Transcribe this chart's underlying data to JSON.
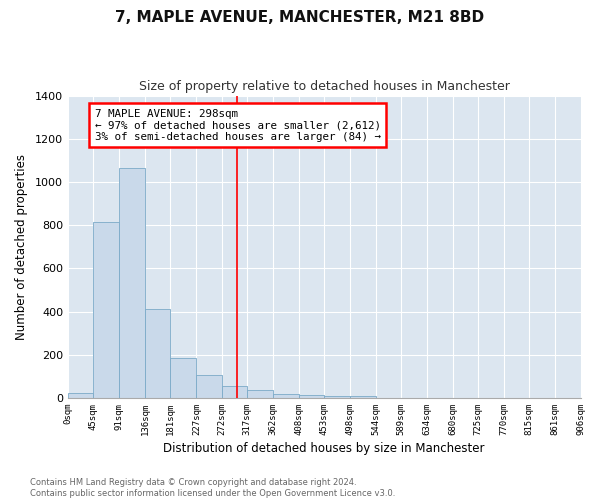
{
  "title": "7, MAPLE AVENUE, MANCHESTER, M21 8BD",
  "subtitle": "Size of property relative to detached houses in Manchester",
  "xlabel": "Distribution of detached houses by size in Manchester",
  "ylabel": "Number of detached properties",
  "bar_color": "#c9d9ea",
  "bar_edge_color": "#7baac8",
  "background_color": "#dce6f0",
  "grid_color": "#ffffff",
  "fig_background": "#ffffff",
  "bin_edges": [
    0,
    45,
    91,
    136,
    181,
    227,
    272,
    317,
    362,
    408,
    453,
    498,
    544,
    589,
    634,
    680,
    725,
    770,
    815,
    861,
    906
  ],
  "bin_labels": [
    "0sqm",
    "45sqm",
    "91sqm",
    "136sqm",
    "181sqm",
    "227sqm",
    "272sqm",
    "317sqm",
    "362sqm",
    "408sqm",
    "453sqm",
    "498sqm",
    "544sqm",
    "589sqm",
    "634sqm",
    "680sqm",
    "725sqm",
    "770sqm",
    "815sqm",
    "861sqm",
    "906sqm"
  ],
  "bar_heights": [
    25,
    815,
    1065,
    410,
    185,
    105,
    55,
    35,
    20,
    13,
    10,
    10,
    0,
    0,
    0,
    0,
    0,
    0,
    0,
    0
  ],
  "ylim": [
    0,
    1400
  ],
  "yticks": [
    0,
    200,
    400,
    600,
    800,
    1000,
    1200,
    1400
  ],
  "red_line_x": 298,
  "annotation_title": "7 MAPLE AVENUE: 298sqm",
  "annotation_line1": "← 97% of detached houses are smaller (2,612)",
  "annotation_line2": "3% of semi-detached houses are larger (84) →",
  "footer_line1": "Contains HM Land Registry data © Crown copyright and database right 2024.",
  "footer_line2": "Contains public sector information licensed under the Open Government Licence v3.0."
}
